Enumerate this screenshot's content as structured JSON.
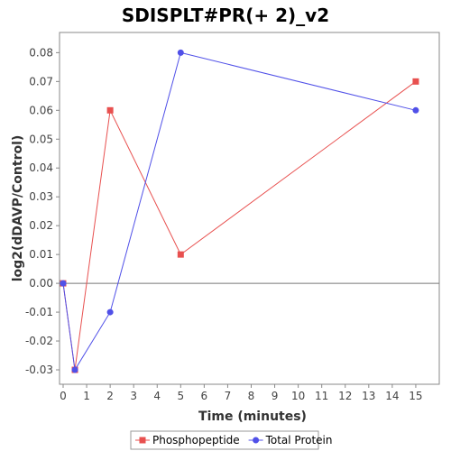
{
  "chart_data": {
    "type": "line",
    "title": "SDISPLT#PR(+ 2)_v2",
    "xlabel": "Time (minutes)",
    "ylabel": "log2(dDAVP/Control)",
    "xlim": [
      0,
      16
    ],
    "ylim": [
      -0.035,
      0.087
    ],
    "x_ticks": [
      0,
      1,
      2,
      3,
      4,
      5,
      6,
      7,
      8,
      9,
      10,
      11,
      12,
      13,
      14,
      15
    ],
    "y_ticks": [
      -0.03,
      -0.02,
      -0.01,
      0.0,
      0.01,
      0.02,
      0.03,
      0.04,
      0.05,
      0.06,
      0.07,
      0.08
    ],
    "y_tick_labels": [
      "-0.03",
      "-0.02",
      "-0.01",
      "0.00",
      "0.01",
      "0.02",
      "0.03",
      "0.04",
      "0.05",
      "0.06",
      "0.07",
      "0.08"
    ],
    "grid": false,
    "zero_line": true,
    "legend_position": "bottom",
    "series": [
      {
        "name": "Phosphopeptide",
        "color": "#e8504f",
        "marker": "square",
        "x": [
          0,
          0.5,
          2,
          5,
          15
        ],
        "y": [
          0.0,
          -0.03,
          0.06,
          0.01,
          0.07
        ]
      },
      {
        "name": "Total Protein",
        "color": "#5050e8",
        "marker": "circle",
        "x": [
          0,
          0.5,
          2,
          5,
          15
        ],
        "y": [
          0.0,
          -0.03,
          -0.01,
          0.08,
          0.06
        ]
      }
    ]
  }
}
